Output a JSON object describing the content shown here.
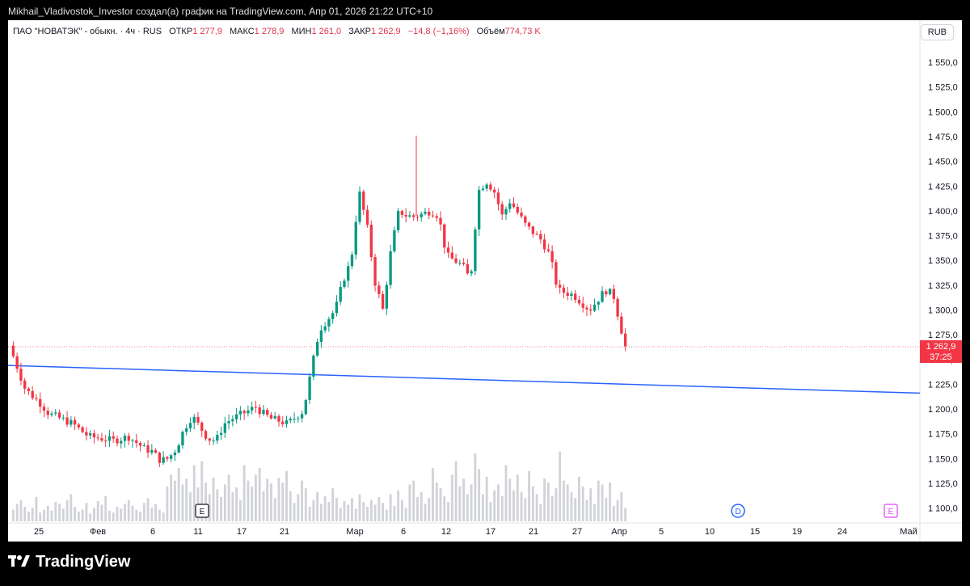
{
  "caption": "Mikhail_Vladivostok_Investor создал(а) график на TradingView.com, Апр 01, 2026 21:22 UTC+10",
  "legend": {
    "symbol": "ПАО \"НОВАТЭК\" - обыкн. · 4ч · RUS",
    "open_label": "ОТКР",
    "open": "1 277,9",
    "high_label": "МАКС",
    "high": "1 278,9",
    "low_label": "МИН",
    "low": "1 261,0",
    "close_label": "ЗАКР",
    "close": "1 262,9",
    "change": "−14,8 (−1,16%)",
    "volume_label": "Объём",
    "volume": "774,73 K"
  },
  "currency": "RUB",
  "footer_brand": "TradingView",
  "colors": {
    "up": "#089981",
    "down": "#f23645",
    "trend": "#2962ff",
    "price_tag": "#f23645"
  },
  "markers": [
    {
      "letter": "E",
      "at": "Фев 10",
      "kind": "earnings"
    },
    {
      "letter": "D",
      "at": "Апр 13",
      "kind": "dividend"
    },
    {
      "letter": "E",
      "at": "Апр 29",
      "kind": "earnings"
    }
  ],
  "chart_data": {
    "type": "candlestick",
    "yticks": [
      1100,
      1125,
      1150,
      1175,
      1200,
      1225,
      1250,
      1275,
      1300,
      1325,
      1350,
      1375,
      1400,
      1425,
      1450,
      1475,
      1500,
      1525,
      1550
    ],
    "ytick_labels": [
      "1 100,0",
      "1 125,0",
      "1 150,0",
      "1 175,0",
      "1 200,0",
      "1 225,0",
      "1 250,0",
      "1 275,0",
      "1 300,0",
      "1 325,0",
      "1 350,0",
      "1 375,0",
      "1 400,0",
      "1 425,0",
      "1 450,0",
      "1 475,0",
      "1 500,0",
      "1 525,0",
      "1 550,0"
    ],
    "ylim": [
      1085,
      1568
    ],
    "xticks": [
      "25",
      "Фев",
      "6",
      "11",
      "17",
      "21",
      "Мар",
      "6",
      "12",
      "17",
      "21",
      "27",
      "Апр",
      "5",
      "10",
      "15",
      "19",
      "24",
      "Май"
    ],
    "last_price": "1 262,9",
    "countdown": "37:25",
    "trendline": {
      "from": 1244,
      "to": 1216
    },
    "close_path": [
      [
        1242,
        1
      ],
      [
        1220,
        2
      ],
      [
        1205,
        4
      ],
      [
        1195,
        5
      ],
      [
        1192,
        6
      ],
      [
        1185,
        8
      ],
      [
        1172,
        10
      ],
      [
        1170,
        12
      ],
      [
        1168,
        13
      ],
      [
        1172,
        15
      ],
      [
        1160,
        17
      ],
      [
        1157,
        18
      ],
      [
        1148,
        19
      ],
      [
        1150,
        20
      ],
      [
        1160,
        21
      ],
      [
        1180,
        22
      ],
      [
        1193,
        23
      ],
      [
        1170,
        25
      ],
      [
        1168,
        26
      ],
      [
        1185,
        27
      ],
      [
        1190,
        28
      ],
      [
        1198,
        30
      ],
      [
        1202,
        31
      ],
      [
        1195,
        32
      ],
      [
        1190,
        33
      ],
      [
        1188,
        34
      ],
      [
        1185,
        35
      ],
      [
        1192,
        36
      ],
      [
        1198,
        37
      ],
      [
        1240,
        38
      ],
      [
        1280,
        39
      ],
      [
        1290,
        40
      ],
      [
        1300,
        41
      ],
      [
        1330,
        42
      ],
      [
        1350,
        43
      ],
      [
        1420,
        44
      ],
      [
        1385,
        45
      ],
      [
        1328,
        46
      ],
      [
        1300,
        47
      ],
      [
        1360,
        48
      ],
      [
        1400,
        49
      ],
      [
        1395,
        50
      ],
      [
        1394,
        51
      ],
      [
        1400,
        53
      ],
      [
        1395,
        54
      ],
      [
        1355,
        55
      ],
      [
        1345,
        57
      ],
      [
        1330,
        58
      ],
      [
        1420,
        59
      ],
      [
        1430,
        60
      ],
      [
        1420,
        61
      ],
      [
        1395,
        62
      ],
      [
        1410,
        63
      ],
      [
        1385,
        65
      ],
      [
        1370,
        67
      ],
      [
        1355,
        68
      ],
      [
        1320,
        69
      ],
      [
        1315,
        71
      ],
      [
        1300,
        73
      ],
      [
        1310,
        74
      ],
      [
        1320,
        75
      ],
      [
        1315,
        76
      ],
      [
        1280,
        77
      ],
      [
        1262.9,
        77.5
      ]
    ],
    "volume_pct": [
      12,
      18,
      22,
      15,
      10,
      14,
      25,
      9,
      12,
      16,
      11,
      20,
      18,
      13,
      22,
      28,
      15,
      10,
      12,
      19,
      8,
      14,
      21,
      17,
      26,
      11,
      9,
      15,
      13,
      18,
      22,
      16,
      12,
      10,
      19,
      24,
      14,
      18,
      12,
      9,
      36,
      48,
      42,
      55,
      38,
      44,
      30,
      58,
      35,
      62,
      40,
      28,
      45,
      33,
      25,
      38,
      48,
      30,
      35,
      22,
      58,
      42,
      36,
      48,
      55,
      31,
      44,
      39,
      24,
      45,
      40,
      52,
      31,
      19,
      28,
      42,
      34,
      15,
      22,
      30,
      18,
      26,
      20,
      34,
      24,
      14,
      21,
      17,
      24,
      13,
      28,
      20,
      15,
      22,
      17,
      25,
      19,
      12,
      28,
      16,
      32,
      22,
      14,
      38,
      42,
      25,
      30,
      18,
      24,
      55,
      40,
      34,
      26,
      20,
      48,
      62,
      36,
      44,
      28,
      38,
      70,
      54,
      28,
      46,
      20,
      32,
      38,
      26,
      58,
      44,
      32,
      48,
      30,
      24,
      52,
      36,
      28,
      18,
      44,
      40,
      26,
      34,
      72,
      42,
      38,
      30,
      24,
      46,
      36,
      22,
      34,
      18,
      42,
      38,
      24,
      40,
      16,
      22,
      30,
      14
    ]
  }
}
